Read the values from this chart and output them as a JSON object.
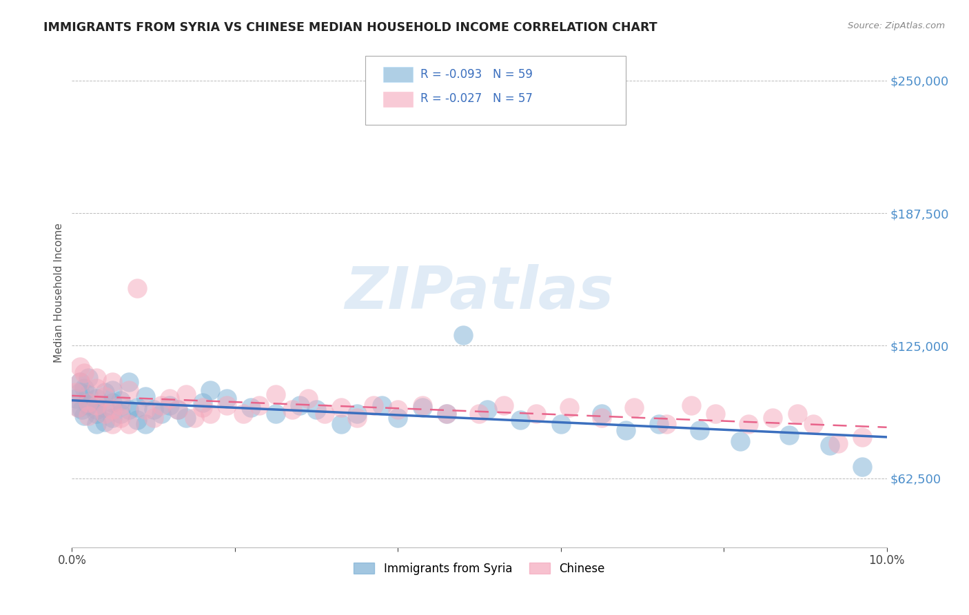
{
  "title": "IMMIGRANTS FROM SYRIA VS CHINESE MEDIAN HOUSEHOLD INCOME CORRELATION CHART",
  "source": "Source: ZipAtlas.com",
  "ylabel": "Median Household Income",
  "xmin": 0.0,
  "xmax": 0.1,
  "ymin": 30000,
  "ymax": 270000,
  "yticks": [
    62500,
    125000,
    187500,
    250000
  ],
  "ytick_labels": [
    "$62,500",
    "$125,000",
    "$187,500",
    "$250,000"
  ],
  "xticks": [
    0.0,
    0.02,
    0.04,
    0.06,
    0.08,
    0.1
  ],
  "xtick_labels": [
    "0.0%",
    "",
    "",
    "",
    "",
    "10.0%"
  ],
  "legend_r1": "R = -0.093",
  "legend_n1": "N = 59",
  "legend_r2": "R = -0.027",
  "legend_n2": "N = 57",
  "series1_label": "Immigrants from Syria",
  "series2_label": "Chinese",
  "series1_color": "#7BAFD4",
  "series2_color": "#F4A7BB",
  "trend1_color": "#3B6FBE",
  "trend2_color": "#E8638A",
  "background_color": "#FFFFFF",
  "watermark_text": "ZIPatlas",
  "watermark_color": "#C8DCF0",
  "title_color": "#222222",
  "axis_label_color": "#555555",
  "ytick_color": "#4D8FCB",
  "grid_color": "#BBBBBB",
  "series1_x": [
    0.0005,
    0.0008,
    0.001,
    0.001,
    0.0012,
    0.0015,
    0.0015,
    0.002,
    0.002,
    0.002,
    0.002,
    0.003,
    0.003,
    0.003,
    0.003,
    0.004,
    0.004,
    0.004,
    0.005,
    0.005,
    0.005,
    0.006,
    0.006,
    0.007,
    0.007,
    0.008,
    0.008,
    0.009,
    0.009,
    0.01,
    0.011,
    0.012,
    0.013,
    0.014,
    0.016,
    0.017,
    0.019,
    0.022,
    0.025,
    0.028,
    0.03,
    0.033,
    0.035,
    0.038,
    0.04,
    0.043,
    0.046,
    0.048,
    0.051,
    0.055,
    0.06,
    0.065,
    0.068,
    0.072,
    0.077,
    0.082,
    0.088,
    0.093,
    0.097
  ],
  "series1_y": [
    100000,
    96000,
    103000,
    108000,
    95000,
    92000,
    105000,
    97000,
    102000,
    110000,
    98000,
    95000,
    100000,
    88000,
    93000,
    96000,
    103000,
    89000,
    91000,
    98000,
    104000,
    93000,
    99000,
    95000,
    108000,
    90000,
    96000,
    88000,
    101000,
    95000,
    93000,
    97000,
    95000,
    91000,
    98000,
    104000,
    100000,
    96000,
    93000,
    97000,
    95000,
    88000,
    93000,
    97000,
    91000,
    96000,
    93000,
    130000,
    95000,
    90000,
    88000,
    93000,
    85000,
    88000,
    85000,
    80000,
    83000,
    78000,
    68000
  ],
  "series2_x": [
    0.0004,
    0.0007,
    0.001,
    0.001,
    0.0015,
    0.002,
    0.002,
    0.003,
    0.003,
    0.003,
    0.004,
    0.004,
    0.005,
    0.005,
    0.005,
    0.006,
    0.006,
    0.007,
    0.007,
    0.008,
    0.009,
    0.01,
    0.011,
    0.012,
    0.013,
    0.014,
    0.015,
    0.016,
    0.017,
    0.019,
    0.021,
    0.023,
    0.025,
    0.027,
    0.029,
    0.031,
    0.033,
    0.035,
    0.037,
    0.04,
    0.043,
    0.046,
    0.05,
    0.053,
    0.057,
    0.061,
    0.065,
    0.069,
    0.073,
    0.076,
    0.079,
    0.083,
    0.086,
    0.089,
    0.091,
    0.094,
    0.097
  ],
  "series2_y": [
    103000,
    96000,
    108000,
    115000,
    112000,
    98000,
    92000,
    97000,
    105000,
    110000,
    93000,
    101000,
    88000,
    95000,
    108000,
    91000,
    97000,
    88000,
    104000,
    152000,
    95000,
    91000,
    97000,
    100000,
    95000,
    102000,
    91000,
    96000,
    93000,
    97000,
    93000,
    97000,
    102000,
    95000,
    100000,
    93000,
    96000,
    91000,
    97000,
    95000,
    97000,
    93000,
    93000,
    97000,
    93000,
    96000,
    91000,
    96000,
    88000,
    97000,
    93000,
    88000,
    91000,
    93000,
    88000,
    79000,
    82000
  ]
}
